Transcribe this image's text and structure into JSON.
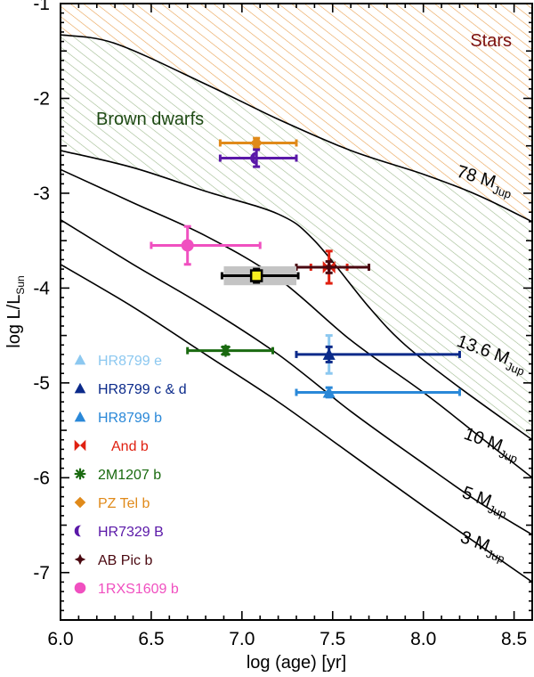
{
  "chart_data": {
    "type": "scatter",
    "title": "",
    "xlabel": "log (age) [yr]",
    "ylabel": {
      "main": "log L/L",
      "sub": "Sun"
    },
    "xlim": [
      6.0,
      8.6
    ],
    "ylim": [
      -7.5,
      -1.0
    ],
    "x_ticks": [
      "6.0",
      "6.5",
      "7.0",
      "7.5",
      "8.0",
      "8.5"
    ],
    "y_ticks": [
      "-1",
      "-2",
      "-3",
      "-4",
      "-5",
      "-6",
      "-7"
    ],
    "grid": false,
    "regions": [
      {
        "name": "Stars",
        "color": "#7b1010",
        "hatch_color": "#e8a050"
      },
      {
        "name": "Brown dwarfs",
        "color": "#1e4a14",
        "hatch_color": "#9fba8f"
      }
    ],
    "tracks": [
      {
        "label": "78 M",
        "sub": "Jup",
        "x": [
          6.0,
          6.3,
          6.8,
          7.2,
          7.6,
          8.0,
          8.3,
          8.6
        ],
        "y": [
          -1.33,
          -1.42,
          -1.85,
          -2.22,
          -2.55,
          -2.8,
          -3.02,
          -3.3
        ]
      },
      {
        "label": "13.6 M",
        "sub": "Jup",
        "x": [
          6.0,
          6.4,
          6.8,
          7.2,
          7.4,
          7.7,
          7.9,
          8.2,
          8.6
        ],
        "y": [
          -2.55,
          -2.73,
          -2.98,
          -3.22,
          -3.5,
          -4.2,
          -4.6,
          -5.05,
          -5.6
        ]
      },
      {
        "label": "10 M",
        "sub": "Jup",
        "x": [
          6.0,
          6.4,
          6.8,
          7.2,
          7.6,
          8.0,
          8.3,
          8.6
        ],
        "y": [
          -2.75,
          -3.1,
          -3.45,
          -3.9,
          -4.55,
          -5.1,
          -5.55,
          -6.0
        ]
      },
      {
        "label": "5 M",
        "sub": "Jup",
        "x": [
          6.0,
          6.4,
          6.8,
          7.2,
          7.6,
          8.0,
          8.3,
          8.6
        ],
        "y": [
          -3.28,
          -3.75,
          -4.2,
          -4.7,
          -5.3,
          -5.85,
          -6.25,
          -6.6
        ]
      },
      {
        "label": "3 M",
        "sub": "Jup",
        "x": [
          6.0,
          6.4,
          6.8,
          7.2,
          7.6,
          8.0,
          8.3,
          8.6
        ],
        "y": [
          -3.75,
          -4.2,
          -4.7,
          -5.2,
          -5.75,
          -6.3,
          -6.7,
          -7.1
        ]
      }
    ],
    "series": [
      {
        "name": "HR8799 e",
        "color": "#8cc8f0",
        "marker": "triangle",
        "x": 7.48,
        "y": -4.7,
        "xerr": [
          0.0,
          0.0
        ],
        "yerr": [
          0.2,
          0.2
        ]
      },
      {
        "name": "HR8799 c & d",
        "color": "#0b2a8a",
        "marker": "triangle",
        "x": 7.48,
        "y": -4.7,
        "xerr": [
          0.18,
          0.72
        ],
        "yerr": [
          0.08,
          0.08
        ]
      },
      {
        "name": "HR8799 b",
        "color": "#2a88d8",
        "marker": "triangle",
        "x": 7.48,
        "y": -5.1,
        "xerr": [
          0.18,
          0.72
        ],
        "yerr": [
          0.05,
          0.05
        ]
      },
      {
        "name": "And b",
        "color": "#e02010",
        "marker": "bowtie",
        "x": 7.48,
        "y": -3.78,
        "xerr": [
          0.1,
          0.1
        ],
        "yerr": [
          0.17,
          0.17
        ]
      },
      {
        "name": "2M1207 b",
        "color": "#1a6a10",
        "marker": "asterisk",
        "x": 6.91,
        "y": -4.66,
        "xerr": [
          0.21,
          0.26
        ],
        "yerr": [
          0.04,
          0.04
        ]
      },
      {
        "name": "PZ Tel b",
        "color": "#e08a1a",
        "marker": "diamond",
        "x": 7.08,
        "y": -2.47,
        "xerr": [
          0.2,
          0.22
        ],
        "yerr": [
          0.05,
          0.05
        ]
      },
      {
        "name": "HR7329 B",
        "color": "#5a18a8",
        "marker": "halfcircle",
        "x": 7.08,
        "y": -2.63,
        "xerr": [
          0.2,
          0.22
        ],
        "yerr": [
          0.09,
          0.09
        ]
      },
      {
        "name": "AB Pic b",
        "color": "#4a0810",
        "marker": "star4",
        "x": 7.48,
        "y": -3.78,
        "xerr": [
          0.18,
          0.22
        ],
        "yerr": [
          0.06,
          0.06
        ]
      },
      {
        "name": "1RXS1609 b",
        "color": "#f050c0",
        "marker": "circle",
        "x": 6.7,
        "y": -3.55,
        "xerr": [
          0.2,
          0.4
        ],
        "yerr": [
          0.2,
          0.2
        ]
      },
      {
        "name": "",
        "color": "#000000",
        "marker": "square-yellow",
        "x": 7.08,
        "y": -3.87,
        "xerr": [
          0.19,
          0.23
        ],
        "yerr": [
          0.07,
          0.07
        ],
        "band_xrange": [
          6.9,
          7.3
        ],
        "band_y": [
          -3.97,
          -3.77
        ]
      }
    ],
    "legend_position": "lower-left"
  }
}
